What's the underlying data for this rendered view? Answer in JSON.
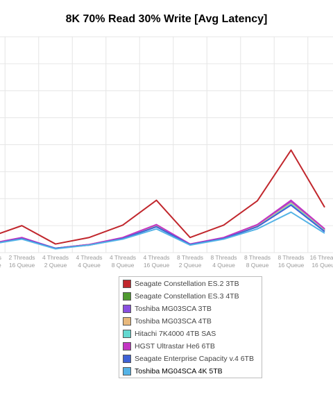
{
  "chart_data": {
    "type": "line",
    "title": "8K 70% Read 30% Write [Avg Latency]",
    "xlabel": "",
    "ylabel": "",
    "ylim": [
      0,
      40
    ],
    "grid": true,
    "legend_position": "bottom",
    "categories": [
      [
        "1 Threads",
        "16 Queue"
      ],
      [
        "2 Threads",
        "16 Queue"
      ],
      [
        "4 Threads",
        "2 Queue"
      ],
      [
        "4 Threads",
        "4 Queue"
      ],
      [
        "4 Threads",
        "8 Queue"
      ],
      [
        "4 Threads",
        "16 Queue"
      ],
      [
        "8 Threads",
        "2 Queue"
      ],
      [
        "8 Threads",
        "4 Queue"
      ],
      [
        "8 Threads",
        "8 Queue"
      ],
      [
        "8 Threads",
        "16 Queue"
      ],
      [
        "16 Threads",
        "16 Queue"
      ]
    ],
    "series": [
      {
        "name": "Seagate Constellation ES.2 3TB",
        "color": "#c1272d",
        "values": [
          2.8,
          5.0,
          1.6,
          2.8,
          5.1,
          9.7,
          2.8,
          5.1,
          9.6,
          19.0,
          8.4
        ]
      },
      {
        "name": "Seagate Constellation ES.3 4TB",
        "color": "#4f9a30",
        "values": [
          1.6,
          2.7,
          0.8,
          1.5,
          2.7,
          4.9,
          1.5,
          2.7,
          5.0,
          9.3,
          4.2
        ]
      },
      {
        "name": "Toshiba MG03SCA 3TB",
        "color": "#8a4fe0",
        "values": [
          1.6,
          2.7,
          0.8,
          1.5,
          2.7,
          5.0,
          1.5,
          2.7,
          5.0,
          9.5,
          4.3
        ]
      },
      {
        "name": "Toshiba MG03SCA 4TB",
        "color": "#e8b87c",
        "values": [
          1.6,
          2.7,
          0.8,
          1.5,
          2.7,
          4.9,
          1.5,
          2.7,
          4.9,
          9.2,
          4.1
        ]
      },
      {
        "name": "Hitachi 7K4000 4TB SAS",
        "color": "#63d8d0",
        "values": [
          1.5,
          2.6,
          0.8,
          1.4,
          2.6,
          4.8,
          1.5,
          2.6,
          4.8,
          9.0,
          4.0
        ]
      },
      {
        "name": "HGST Ultrastar He6 6TB",
        "color": "#c336c3",
        "values": [
          1.6,
          2.8,
          0.8,
          1.5,
          2.8,
          5.2,
          1.6,
          2.8,
          5.2,
          9.7,
          4.4
        ]
      },
      {
        "name": "Seagate Enterprise Capacity v.4 6TB",
        "color": "#3f62d6",
        "values": [
          1.5,
          2.6,
          0.8,
          1.4,
          2.6,
          4.8,
          1.5,
          2.6,
          4.8,
          8.8,
          3.9
        ]
      },
      {
        "name": "Toshiba MG04SCA 4K 5TB",
        "color": "#55b3e6",
        "values": [
          1.5,
          2.5,
          0.7,
          1.4,
          2.5,
          4.4,
          1.4,
          2.5,
          4.4,
          7.5,
          3.6
        ]
      }
    ]
  },
  "legend_highlight": "Toshiba MG04SCA 4K 5TB"
}
